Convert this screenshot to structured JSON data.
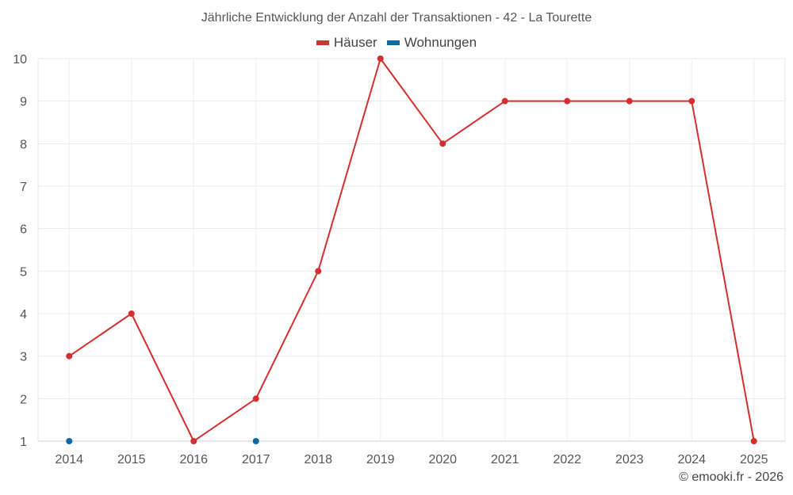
{
  "chart_data": {
    "type": "line",
    "title": "Jährliche Entwicklung der Anzahl der Transaktionen - 42 - La Tourette",
    "categories": [
      "2014",
      "2015",
      "2016",
      "2017",
      "2018",
      "2019",
      "2020",
      "2021",
      "2022",
      "2023",
      "2024",
      "2025"
    ],
    "series": [
      {
        "name": "Häuser",
        "color": "#d32f2f",
        "values": [
          3,
          4,
          1,
          2,
          5,
          10,
          8,
          9,
          9,
          9,
          9,
          1
        ]
      },
      {
        "name": "Wohnungen",
        "color": "#0a6aa1",
        "values": [
          1,
          null,
          null,
          1,
          null,
          null,
          null,
          null,
          null,
          null,
          null,
          null
        ]
      }
    ],
    "ylim": [
      1,
      10
    ],
    "yticks": [
      1,
      2,
      3,
      4,
      5,
      6,
      7,
      8,
      9,
      10
    ],
    "grid": true,
    "legend_position": "top-center"
  },
  "footer": {
    "credit": "© emooki.fr - 2026"
  }
}
